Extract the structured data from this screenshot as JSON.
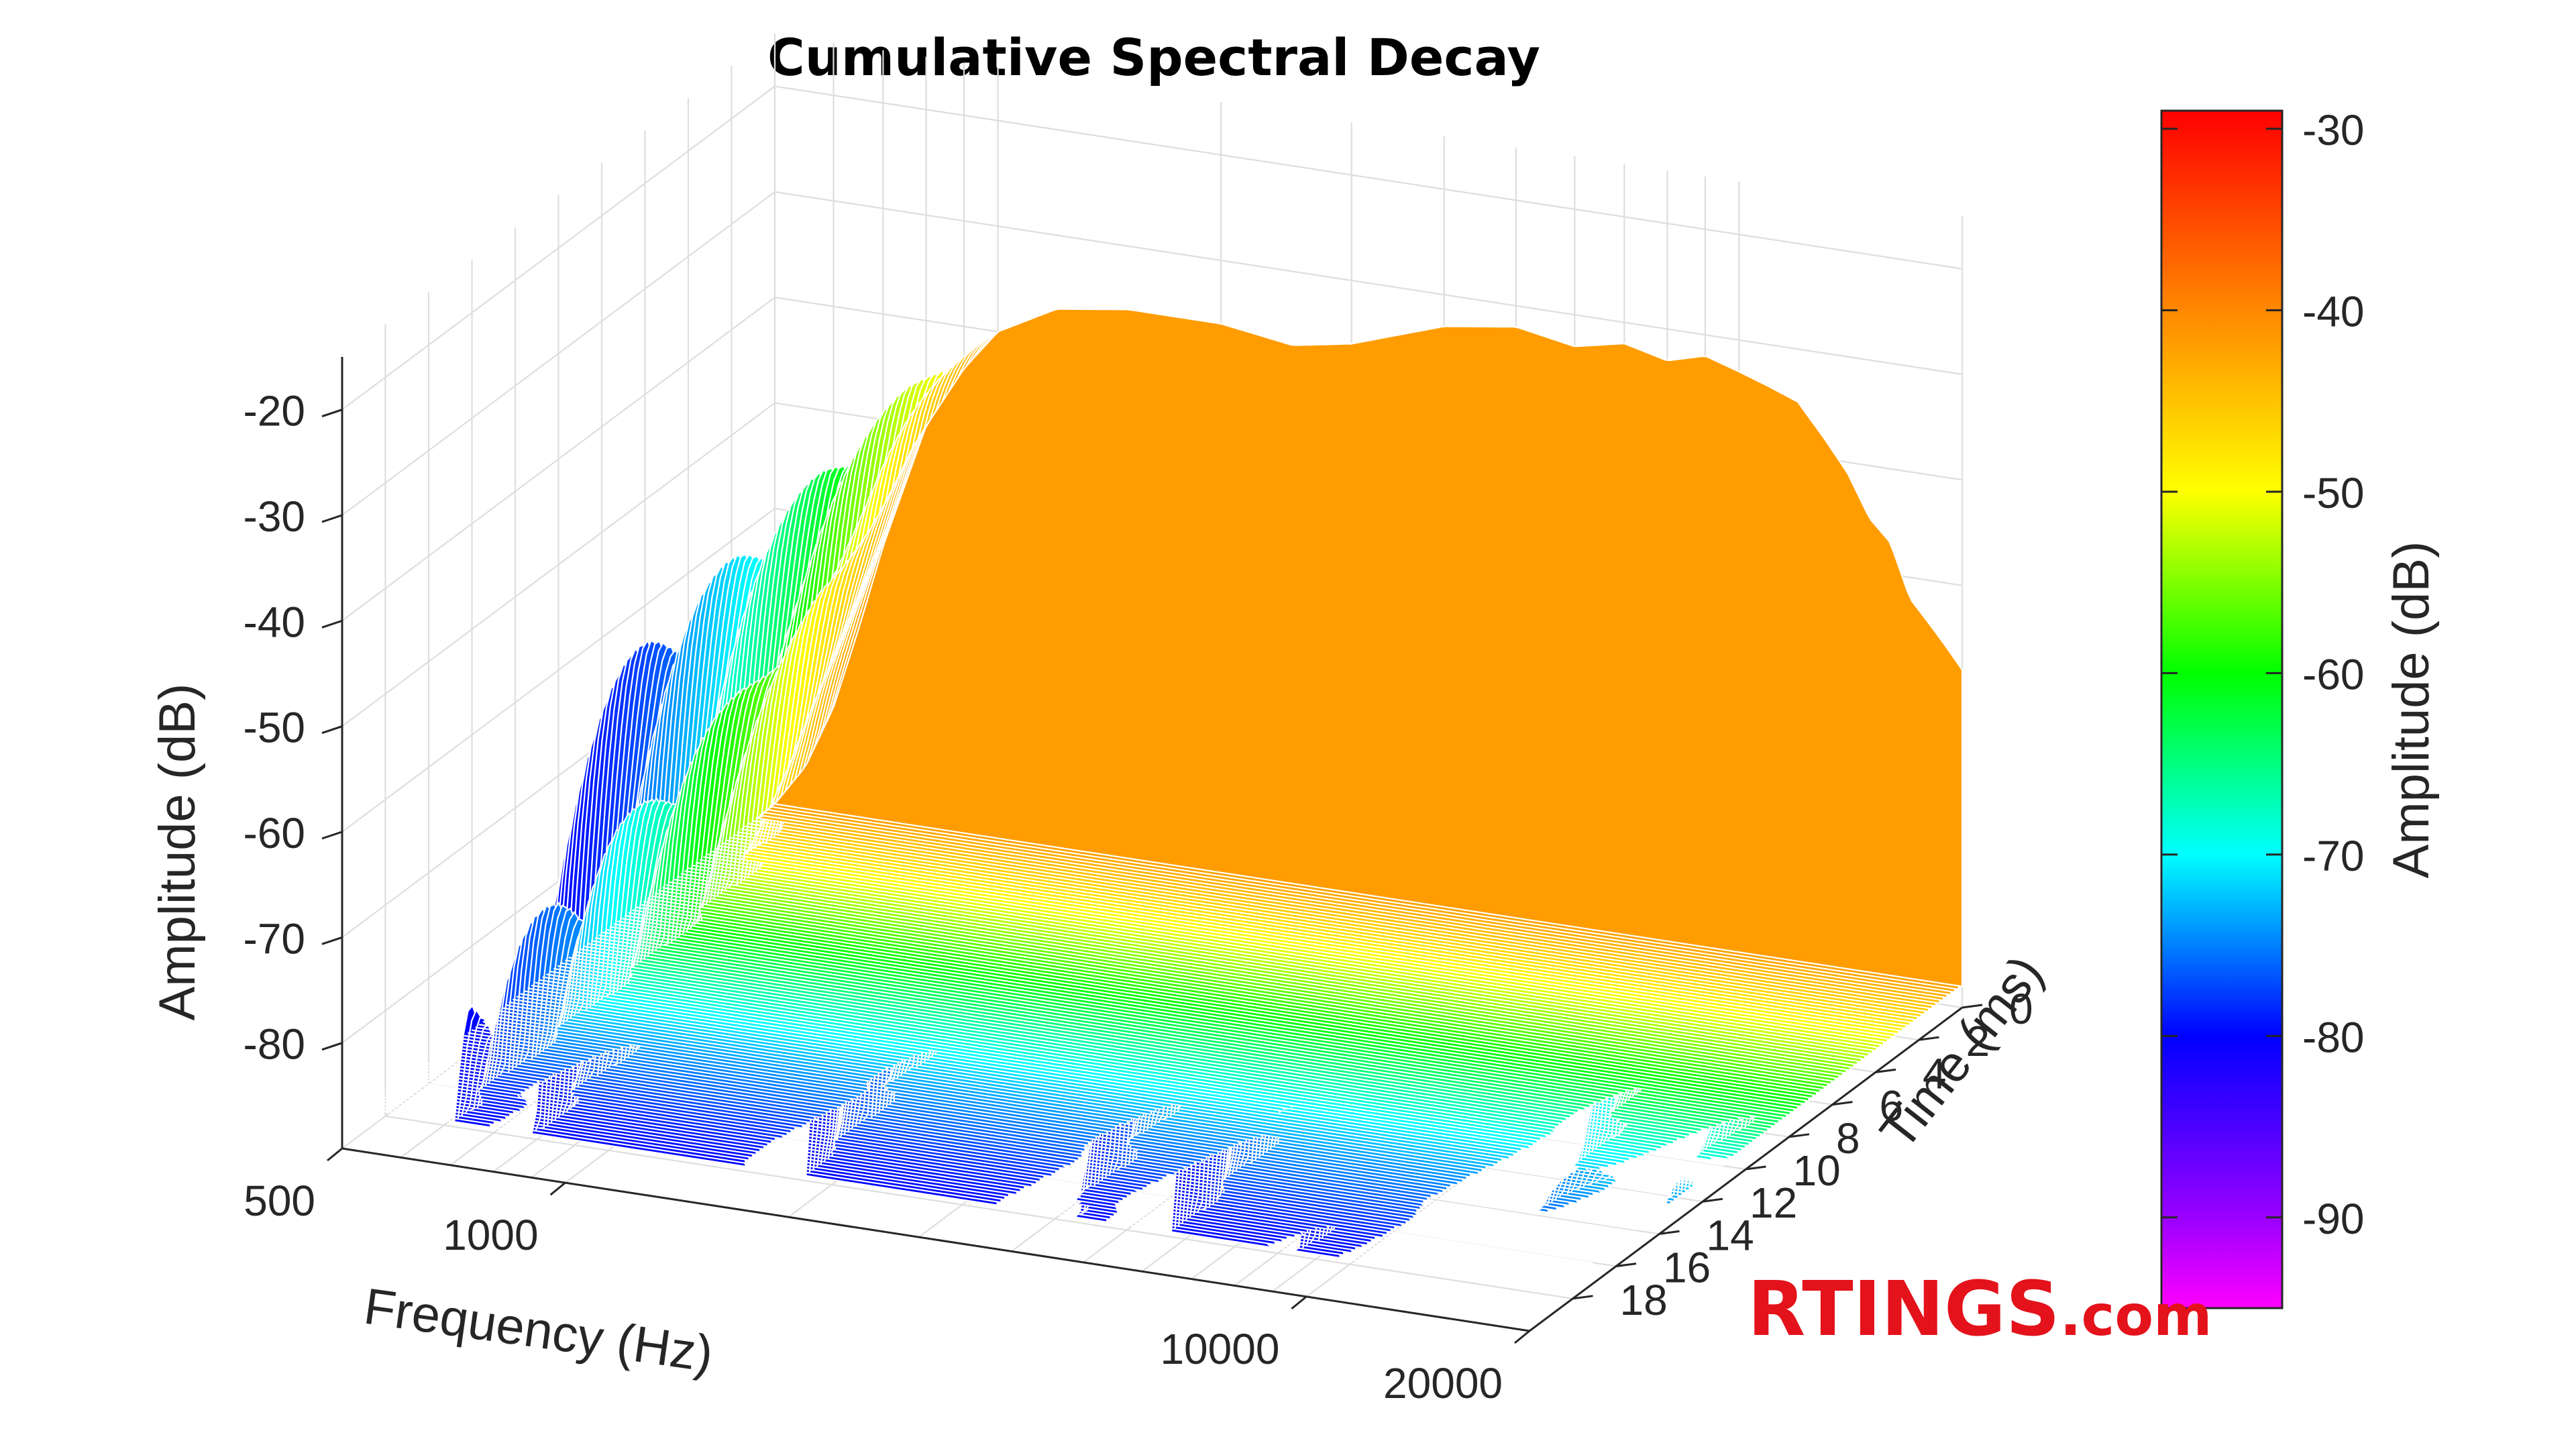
{
  "chart_data": {
    "type": "surface-3d",
    "title": "Cumulative Spectral Decay",
    "xlabel": "Frequency (Hz)",
    "ylabel": "Time (ms)",
    "zlabel": "Amplitude (dB)",
    "x_scale": "log",
    "xlim": [
      500,
      20000
    ],
    "ylim": [
      0,
      20
    ],
    "zlim": [
      -90,
      -15
    ],
    "x_ticks": [
      {
        "value": 500,
        "label": "500"
      },
      {
        "value": 1000,
        "label": "1000"
      },
      {
        "value": 10000,
        "label": "10000"
      },
      {
        "value": 20000,
        "label": "20000"
      }
    ],
    "y_ticks": [
      {
        "value": 0,
        "label": "0"
      },
      {
        "value": 2,
        "label": "2"
      },
      {
        "value": 4,
        "label": "4"
      },
      {
        "value": 6,
        "label": "6"
      },
      {
        "value": 8,
        "label": "8"
      },
      {
        "value": 10,
        "label": "10"
      },
      {
        "value": 12,
        "label": "12"
      },
      {
        "value": 14,
        "label": "14"
      },
      {
        "value": 16,
        "label": "16"
      },
      {
        "value": 18,
        "label": "18"
      }
    ],
    "z_ticks": [
      {
        "value": -20,
        "label": "-20"
      },
      {
        "value": -30,
        "label": "-30"
      },
      {
        "value": -40,
        "label": "-40"
      },
      {
        "value": -50,
        "label": "-50"
      },
      {
        "value": -60,
        "label": "-60"
      },
      {
        "value": -70,
        "label": "-70"
      },
      {
        "value": -80,
        "label": "-80"
      }
    ],
    "initial_response_db": {
      "frequency_hz": [
        500,
        550,
        600,
        650,
        700,
        800,
        900,
        1000,
        1200,
        1500,
        2000,
        2500,
        3000,
        4000,
        5000,
        6000,
        7000,
        8000,
        9000,
        10000,
        11000,
        12000,
        13000,
        14000,
        15000,
        16000,
        17000,
        18000,
        19000,
        20000
      ],
      "amplitude_db": [
        -88,
        -84,
        -78,
        -70,
        -62,
        -50,
        -44,
        -40,
        -37,
        -36,
        -36,
        -37,
        -36,
        -33,
        -32,
        -33,
        -32,
        -33,
        -32,
        -33,
        -34,
        -35,
        -38,
        -41,
        -45,
        -47,
        -52,
        -54,
        -56,
        -58
      ]
    },
    "colorbar": {
      "label": "Amplitude (dB)",
      "range": [
        -95,
        -29
      ],
      "ticks": [
        {
          "value": -30,
          "label": "-30"
        },
        {
          "value": -40,
          "label": "-40"
        },
        {
          "value": -50,
          "label": "-50"
        },
        {
          "value": -60,
          "label": "-60"
        },
        {
          "value": -70,
          "label": "-70"
        },
        {
          "value": -80,
          "label": "-80"
        },
        {
          "value": -90,
          "label": "-90"
        }
      ],
      "stops": [
        {
          "value": -29,
          "color": "#ff0000"
        },
        {
          "value": -40,
          "color": "#ff8800"
        },
        {
          "value": -50,
          "color": "#ffff00"
        },
        {
          "value": -60,
          "color": "#00ff00"
        },
        {
          "value": -70,
          "color": "#00ffff"
        },
        {
          "value": -80,
          "color": "#0000ff"
        },
        {
          "value": -90,
          "color": "#9900ff"
        },
        {
          "value": -95,
          "color": "#ff00ff"
        }
      ]
    },
    "grid": true
  },
  "branding": {
    "logo_main": "RTINGS",
    "logo_suffix": ".com"
  }
}
